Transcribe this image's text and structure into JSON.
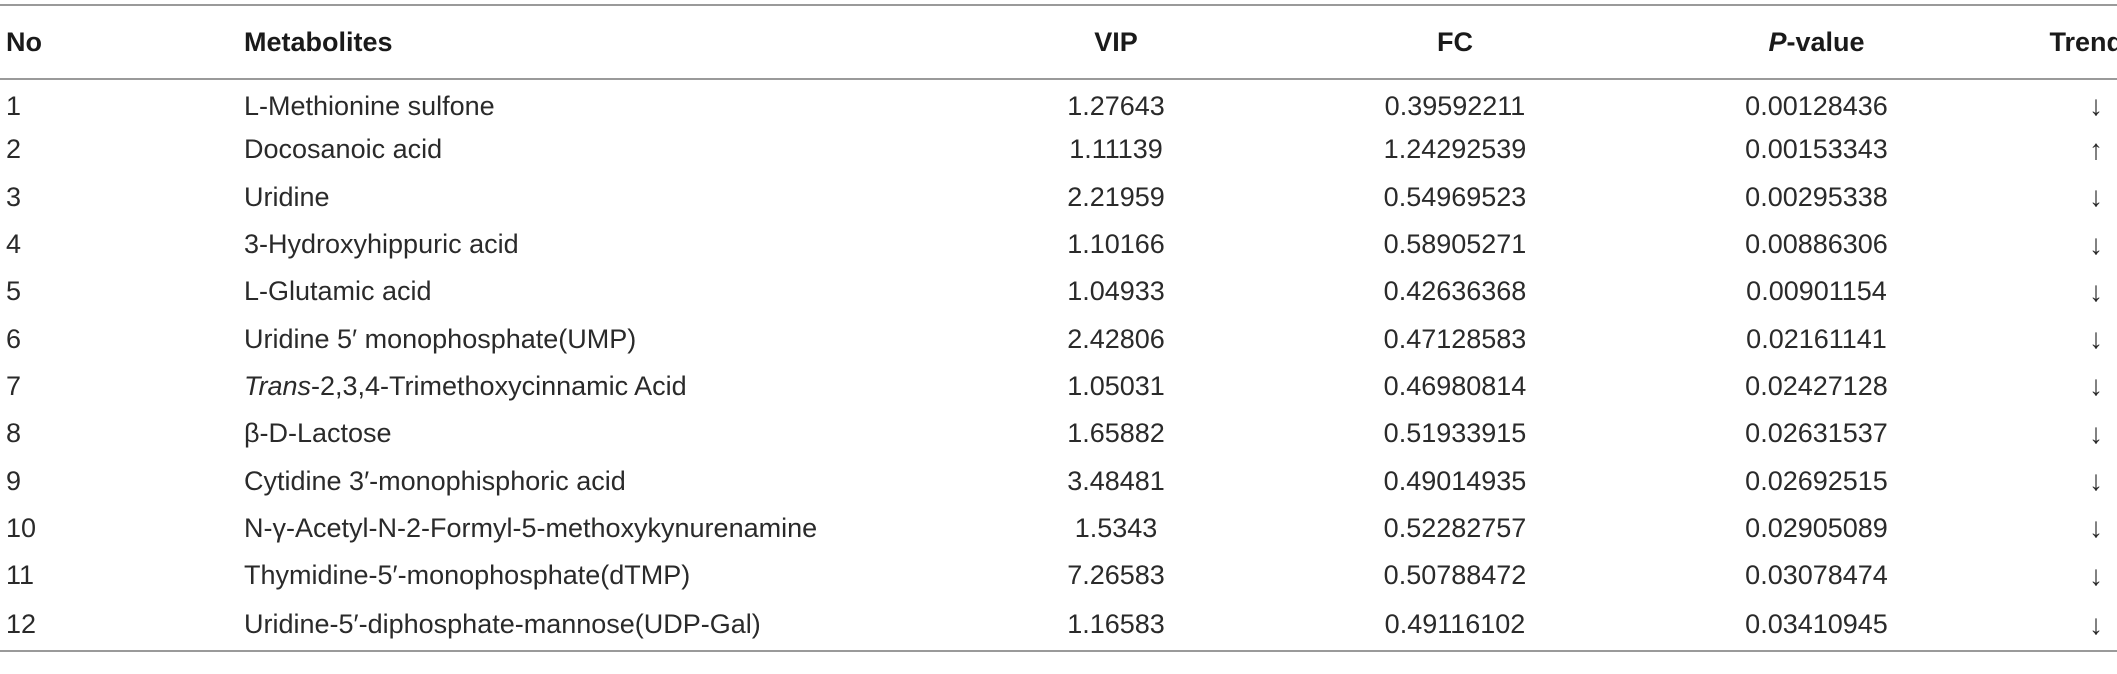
{
  "headers": {
    "no": "No",
    "metabolites": "Metabolites",
    "vip": "VIP",
    "fc": "FC",
    "p_italic": "P",
    "p_rest": "-value",
    "trend": "Trend"
  },
  "rows": [
    {
      "no": "1",
      "met_italic": "",
      "met": "L-Methionine sulfone",
      "vip": "1.27643",
      "fc": "0.39592211",
      "p": "0.00128436",
      "trend": "↓"
    },
    {
      "no": "2",
      "met_italic": "",
      "met": "Docosanoic acid",
      "vip": "1.11139",
      "fc": "1.24292539",
      "p": "0.00153343",
      "trend": "↑"
    },
    {
      "no": "3",
      "met_italic": "",
      "met": "Uridine",
      "vip": "2.21959",
      "fc": "0.54969523",
      "p": "0.00295338",
      "trend": "↓"
    },
    {
      "no": "4",
      "met_italic": "",
      "met": "3-Hydroxyhippuric acid",
      "vip": "1.10166",
      "fc": "0.58905271",
      "p": "0.00886306",
      "trend": "↓"
    },
    {
      "no": "5",
      "met_italic": "",
      "met": "L-Glutamic acid",
      "vip": "1.04933",
      "fc": "0.42636368",
      "p": "0.00901154",
      "trend": "↓"
    },
    {
      "no": "6",
      "met_italic": "",
      "met": "Uridine 5′ monophosphate(UMP)",
      "vip": "2.42806",
      "fc": "0.47128583",
      "p": "0.02161141",
      "trend": "↓"
    },
    {
      "no": "7",
      "met_italic": "Trans",
      "met": "-2,3,4-Trimethoxycinnamic Acid",
      "vip": "1.05031",
      "fc": "0.46980814",
      "p": "0.02427128",
      "trend": "↓"
    },
    {
      "no": "8",
      "met_italic": "",
      "met": "β-D-Lactose",
      "vip": "1.65882",
      "fc": "0.51933915",
      "p": "0.02631537",
      "trend": "↓"
    },
    {
      "no": "9",
      "met_italic": "",
      "met": "Cytidine 3′-monophisphoric acid",
      "vip": "3.48481",
      "fc": "0.49014935",
      "p": "0.02692515",
      "trend": "↓"
    },
    {
      "no": "10",
      "met_italic": "",
      "met": "N-γ-Acetyl-N-2-Formyl-5-methoxykynurenamine",
      "vip": "1.5343",
      "fc": "0.52282757",
      "p": "0.02905089",
      "trend": "↓"
    },
    {
      "no": "11",
      "met_italic": "",
      "met": "Thymidine-5′-monophosphate(dTMP)",
      "vip": "7.26583",
      "fc": "0.50788472",
      "p": "0.03078474",
      "trend": "↓"
    },
    {
      "no": "12",
      "met_italic": "",
      "met": "Uridine-5′-diphosphate-mannose(UDP-Gal)",
      "vip": "1.16583",
      "fc": "0.49116102",
      "p": "0.03410945",
      "trend": "↓"
    }
  ]
}
